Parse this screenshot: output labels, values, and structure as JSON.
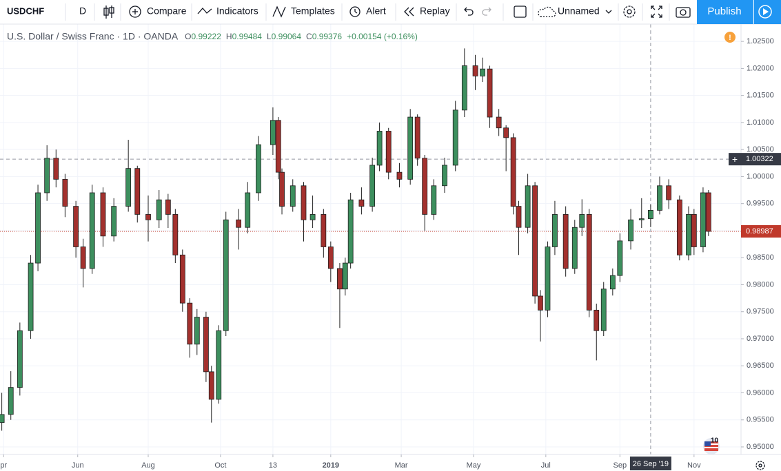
{
  "toolbar": {
    "symbol": "USDCHF",
    "interval": "D",
    "compare": "Compare",
    "indicators": "Indicators",
    "templates": "Templates",
    "alert": "Alert",
    "replay": "Replay",
    "layout_name": "Unnamed",
    "publish": "Publish"
  },
  "chart_data": {
    "type": "candlestick",
    "title": "U.S. Dollar / Swiss Franc · 1D · OANDA",
    "ohlc_names": [
      "O",
      "H",
      "L",
      "C"
    ],
    "change": "+0.00154 (+0.16%)",
    "x": [
      1,
      6,
      11,
      17,
      21,
      26,
      31,
      36,
      42,
      46,
      51,
      57,
      63,
      71,
      76,
      82,
      88,
      93,
      97,
      101,
      105,
      109,
      114,
      117,
      121,
      125,
      132,
      137,
      143,
      151,
      154,
      156,
      162,
      168,
      173,
      179,
      183,
      188,
      191,
      194,
      200,
      206,
      210,
      215,
      221,
      227,
      231,
      235,
      240,
      246,
      252,
      257,
      263,
      267,
      271,
      276,
      280,
      284,
      287,
      292,
      296,
      299,
      303,
      307,
      313,
      318,
      322,
      326,
      330,
      334,
      339,
      343,
      349,
      355,
      360,
      365,
      370,
      376,
      381,
      384,
      389,
      392
    ],
    "open": [
      0.9545,
      0.956,
      0.961,
      0.9715,
      0.984,
      0.997,
      1.0034,
      0.9995,
      0.9945,
      0.987,
      0.983,
      0.997,
      0.989,
      0.9945,
      1.0015,
      0.993,
      0.992,
      0.9957,
      0.993,
      0.9855,
      0.9766,
      0.969,
      0.974,
      0.9639,
      0.9588,
      0.9715,
      0.992,
      0.9906,
      0.997,
      1.0059,
      1.0104,
      1.0008,
      0.9945,
      0.9983,
      0.992,
      0.993,
      0.987,
      0.983,
      0.9792,
      0.984,
      0.9957,
      0.9945,
      1.0021,
      1.0084,
      1.0008,
      0.9995,
      1.011,
      1.0034,
      0.993,
      0.9983,
      1.0021,
      1.0123,
      1.0205,
      1.0186,
      1.0199,
      1.011,
      1.009,
      1.0072,
      0.9945,
      0.9906,
      0.9983,
      0.9779,
      0.9753,
      0.987,
      0.993,
      0.983,
      0.9906,
      0.993,
      0.9753,
      0.9715,
      0.9792,
      0.9817,
      0.9881,
      0.992,
      0.99222,
      0.99376,
      0.9983,
      0.9957,
      0.9855,
      0.993,
      0.987,
      0.997
    ],
    "high": [
      0.96,
      0.964,
      0.973,
      0.9855,
      0.9985,
      1.0058,
      1.005,
      1.0005,
      0.9955,
      0.9885,
      0.9985,
      0.998,
      0.996,
      1.0068,
      1.002,
      0.9965,
      0.9975,
      0.9968,
      0.994,
      0.9865,
      0.9775,
      0.9755,
      0.975,
      0.965,
      0.9725,
      0.9935,
      0.994,
      0.999,
      1.0075,
      1.0128,
      1.011,
      1.0015,
      0.9995,
      0.999,
      0.9965,
      0.994,
      0.988,
      0.984,
      0.985,
      0.997,
      0.998,
      1.0035,
      1.01,
      1.009,
      1.0025,
      1.0125,
      1.0115,
      1.004,
      0.9995,
      1.0035,
      1.014,
      1.0237,
      1.0225,
      1.022,
      1.0205,
      1.0125,
      1.0095,
      1.008,
      0.9955,
      1.0005,
      0.999,
      0.979,
      0.988,
      0.9955,
      0.9945,
      0.992,
      0.9958,
      0.994,
      0.9765,
      0.9805,
      0.983,
      0.9895,
      0.994,
      0.996,
      0.99484,
      1.0,
      0.9995,
      0.9965,
      0.9945,
      0.994,
      0.998,
      0.9975
    ],
    "low": [
      0.953,
      0.955,
      0.9595,
      0.97,
      0.9825,
      0.9955,
      0.998,
      0.9925,
      0.985,
      0.9795,
      0.982,
      0.987,
      0.988,
      0.9935,
      0.9915,
      0.988,
      0.9905,
      0.9905,
      0.984,
      0.975,
      0.9665,
      0.967,
      0.962,
      0.9545,
      0.958,
      0.9705,
      0.9865,
      0.9895,
      0.9955,
      1.004,
      0.9995,
      0.993,
      0.9935,
      0.988,
      0.9905,
      0.985,
      0.9805,
      0.972,
      0.978,
      0.983,
      0.993,
      0.9935,
      1.001,
      0.9995,
      0.998,
      0.9985,
      1.002,
      0.99,
      0.992,
      0.997,
      1.001,
      1.011,
      1.016,
      1.0175,
      1.009,
      1.0075,
      1.001,
      0.993,
      0.9855,
      0.9895,
      0.9765,
      0.9695,
      0.974,
      0.9855,
      0.9815,
      0.982,
      0.989,
      0.974,
      0.966,
      0.9705,
      0.978,
      0.9805,
      0.9865,
      0.9905,
      0.99064,
      0.993,
      0.994,
      0.9845,
      0.9845,
      0.9855,
      0.986,
      0.989
    ],
    "close": [
      0.956,
      0.961,
      0.9715,
      0.984,
      0.997,
      1.0034,
      0.9995,
      0.9945,
      0.987,
      0.983,
      0.997,
      0.989,
      0.9945,
      1.0015,
      0.993,
      0.992,
      0.9957,
      0.993,
      0.9855,
      0.9766,
      0.969,
      0.974,
      0.9639,
      0.9588,
      0.9715,
      0.992,
      0.9906,
      0.997,
      1.0059,
      1.0104,
      1.0008,
      0.9945,
      0.9983,
      0.992,
      0.993,
      0.987,
      0.983,
      0.9792,
      0.984,
      0.9957,
      0.9945,
      1.0021,
      1.0084,
      1.0008,
      0.9995,
      1.011,
      1.0034,
      0.993,
      0.9983,
      1.0021,
      1.0123,
      1.0205,
      1.0186,
      1.0199,
      1.011,
      1.009,
      1.0072,
      0.9945,
      0.9906,
      0.9983,
      0.9779,
      0.9753,
      0.987,
      0.993,
      0.983,
      0.9906,
      0.993,
      0.9753,
      0.9715,
      0.9792,
      0.9817,
      0.9881,
      0.992,
      0.9922,
      0.99376,
      0.9983,
      0.9957,
      0.9855,
      0.993,
      0.987,
      0.997,
      0.98987
    ],
    "up_color": "#3d8f5e",
    "down_color": "#a3312e",
    "wick_color": "#1e1e1e",
    "xlim": [
      0,
      410
    ],
    "xticks": [
      {
        "value": 2,
        "label": "pr"
      },
      {
        "value": 43,
        "label": "Jun"
      },
      {
        "value": 82,
        "label": "Aug"
      },
      {
        "value": 122,
        "label": "Oct"
      },
      {
        "value": 151,
        "label": "13"
      },
      {
        "value": 183,
        "label": "2019"
      },
      {
        "value": 222,
        "label": "Mar"
      },
      {
        "value": 262,
        "label": "May"
      },
      {
        "value": 302,
        "label": "Jul"
      },
      {
        "value": 343,
        "label": "Sep"
      },
      {
        "value": 384,
        "label": "Nov"
      }
    ],
    "ylim": [
      0.9486,
      1.0282
    ],
    "yticks": [
      {
        "value": 0.95,
        "label": "0.95000"
      },
      {
        "value": 0.955,
        "label": "0.95500"
      },
      {
        "value": 0.96,
        "label": "0.96000"
      },
      {
        "value": 0.965,
        "label": "0.96500"
      },
      {
        "value": 0.97,
        "label": "0.97000"
      },
      {
        "value": 0.975,
        "label": "0.97500"
      },
      {
        "value": 0.98,
        "label": "0.98000"
      },
      {
        "value": 0.985,
        "label": "0.98500"
      },
      {
        "value": 0.99,
        "label": "0.99000"
      },
      {
        "value": 0.995,
        "label": "0.99500"
      },
      {
        "value": 1.0,
        "label": "1.00000"
      },
      {
        "value": 1.005,
        "label": "1.00500"
      },
      {
        "value": 1.01,
        "label": "1.01000"
      },
      {
        "value": 1.015,
        "label": "1.01500"
      },
      {
        "value": 1.02,
        "label": "1.02000"
      },
      {
        "value": 1.025,
        "label": "1.02500"
      }
    ],
    "grid": true,
    "crosshair": {
      "x": 360,
      "x_label": "26 Sep '19",
      "y": {
        "value": 1.00322,
        "label": "1.00322"
      }
    },
    "last_price": {
      "value": 0.98987,
      "label": "0.98987",
      "color": "#c0392b"
    },
    "badge": "10"
  }
}
